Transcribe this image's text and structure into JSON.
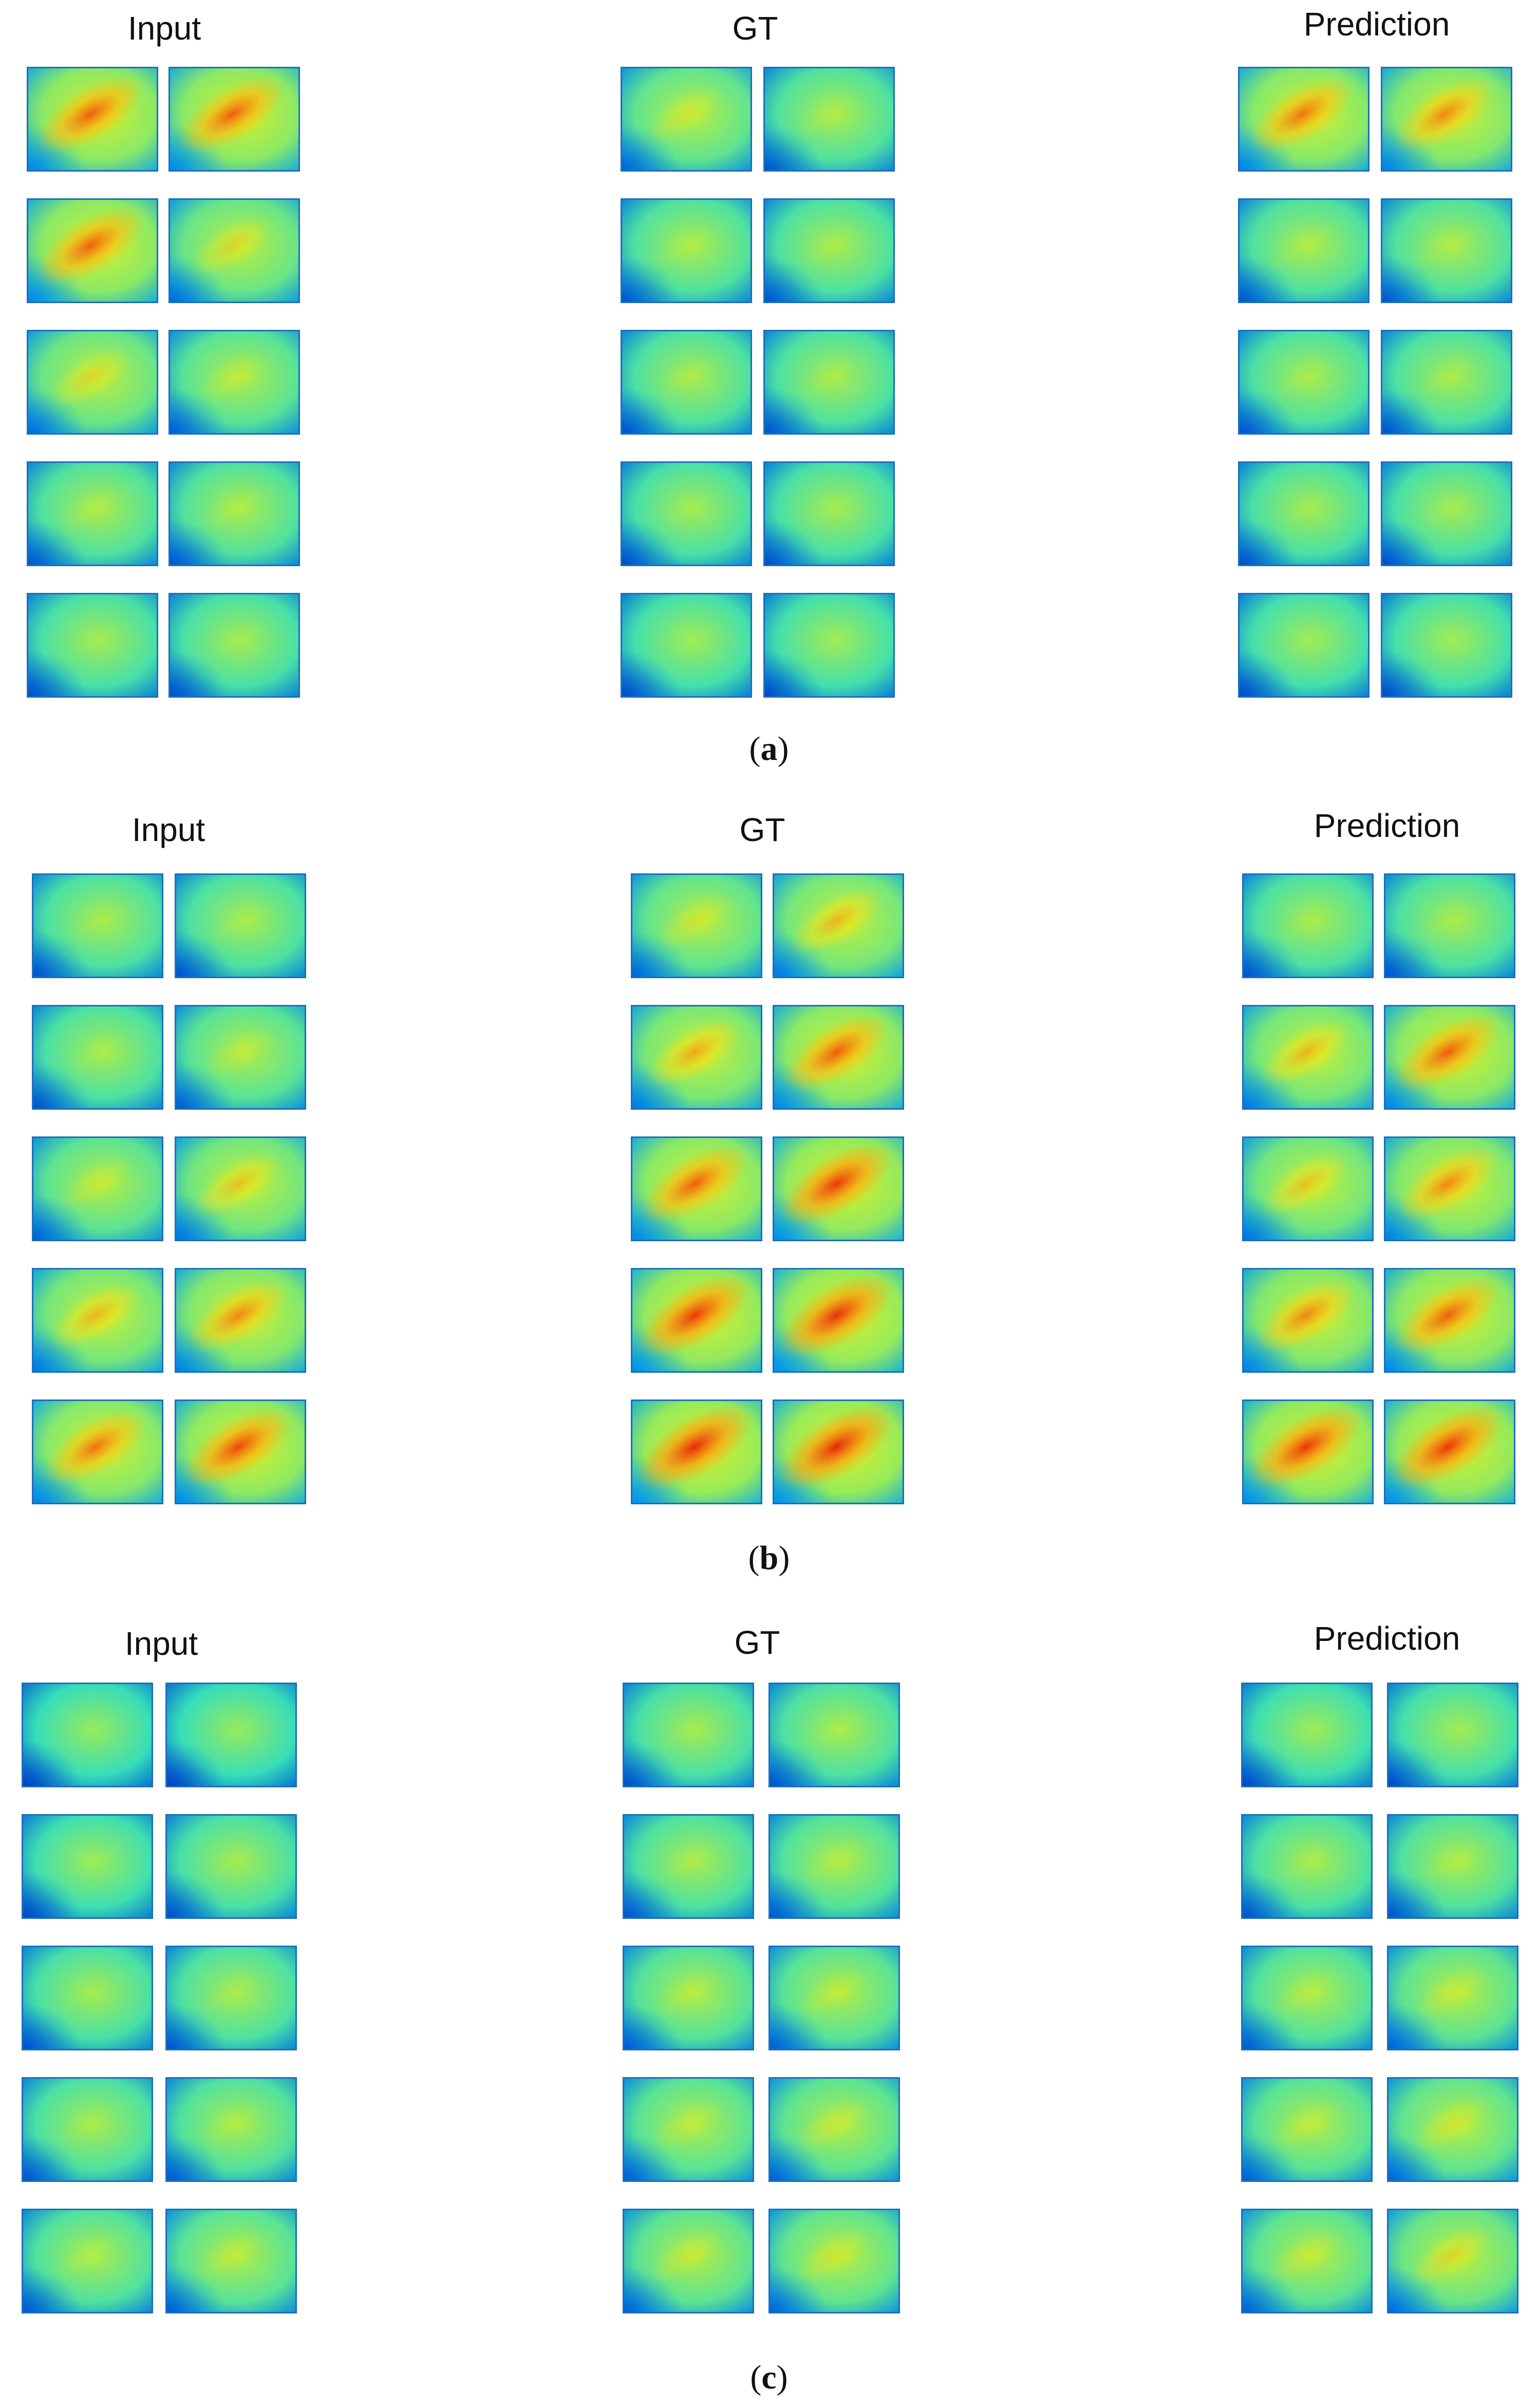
{
  "panels": [
    {
      "id": "a",
      "caption": "a",
      "column_titles": [
        "Input",
        "GT",
        "Prediction"
      ],
      "columns": [
        {
          "key": "input",
          "levels": [
            [
              0.85,
              0.85
            ],
            [
              0.85,
              0.45
            ],
            [
              0.45,
              0.25
            ],
            [
              0.15,
              0.15
            ],
            [
              0.05,
              0.05
            ]
          ]
        },
        {
          "key": "gt",
          "levels": [
            [
              0.35,
              0.15
            ],
            [
              0.15,
              0.12
            ],
            [
              0.12,
              0.12
            ],
            [
              0.05,
              0.05
            ],
            [
              0.0,
              0.0
            ]
          ]
        },
        {
          "key": "prediction",
          "levels": [
            [
              0.8,
              0.75
            ],
            [
              0.15,
              0.15
            ],
            [
              0.1,
              0.1
            ],
            [
              0.05,
              0.05
            ],
            [
              0.0,
              0.0
            ]
          ]
        }
      ]
    },
    {
      "id": "b",
      "caption": "b",
      "column_titles": [
        "Input",
        "GT",
        "Prediction"
      ],
      "columns": [
        {
          "key": "input",
          "levels": [
            [
              0.1,
              0.1
            ],
            [
              0.1,
              0.25
            ],
            [
              0.3,
              0.55
            ],
            [
              0.6,
              0.75
            ],
            [
              0.8,
              0.9
            ]
          ]
        },
        {
          "key": "gt",
          "levels": [
            [
              0.35,
              0.6
            ],
            [
              0.65,
              0.85
            ],
            [
              0.85,
              0.95
            ],
            [
              0.95,
              0.98
            ],
            [
              1.0,
              1.0
            ]
          ]
        },
        {
          "key": "prediction",
          "levels": [
            [
              0.1,
              0.1
            ],
            [
              0.6,
              0.85
            ],
            [
              0.55,
              0.75
            ],
            [
              0.75,
              0.85
            ],
            [
              0.95,
              0.95
            ]
          ]
        }
      ]
    },
    {
      "id": "c",
      "caption": "c",
      "column_titles": [
        "Input",
        "GT",
        "Prediction"
      ],
      "columns": [
        {
          "key": "input",
          "levels": [
            [
              -0.15,
              -0.15
            ],
            [
              -0.05,
              0.05
            ],
            [
              0.05,
              0.1
            ],
            [
              0.1,
              0.15
            ],
            [
              0.15,
              0.25
            ]
          ]
        },
        {
          "key": "gt",
          "levels": [
            [
              0.05,
              0.1
            ],
            [
              0.12,
              0.18
            ],
            [
              0.2,
              0.25
            ],
            [
              0.25,
              0.3
            ],
            [
              0.3,
              0.35
            ]
          ]
        },
        {
          "key": "prediction",
          "levels": [
            [
              -0.05,
              0.0
            ],
            [
              0.1,
              0.15
            ],
            [
              0.18,
              0.3
            ],
            [
              0.25,
              0.35
            ],
            [
              0.3,
              0.45
            ]
          ]
        }
      ]
    }
  ]
}
